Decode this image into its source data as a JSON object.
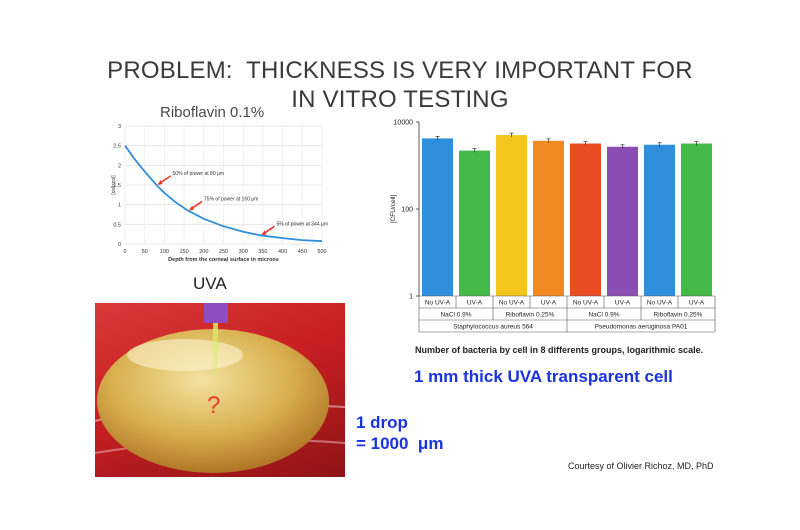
{
  "slide": {
    "title_line1": "PROBLEM:  THICKNESS IS VERY IMPORTANT FOR",
    "title_line2": "IN VITRO TESTING"
  },
  "left_chart": {
    "title": "Riboflavin 0.1%"
  },
  "right_chart": {
    "caption": "Number of bacteria by cell in 8 differents groups, logarithmic scale.",
    "note": "1 mm thick UVA transparent cell"
  },
  "photo": {
    "uva_label": "UVA",
    "question_mark": "?",
    "drop_line1": "1 drop",
    "drop_line2": "= 1000  μm"
  },
  "credit": "Courtesy of Olivier Richoz, MD, PhD",
  "chart_data": [
    {
      "type": "line",
      "title": "Riboflavin 0.1%",
      "xlabel": "Depth from the corneal surface in microns",
      "ylabel": "[cellscol]",
      "xlim": [
        0,
        500
      ],
      "ylim": [
        0,
        3
      ],
      "x_ticks": [
        "0",
        "50",
        "100",
        "150",
        "200",
        "250",
        "300",
        "350",
        "400",
        "450",
        "500"
      ],
      "y_ticks": [
        "0",
        "0.5",
        "1",
        "1.5",
        "2",
        "2.5",
        "3"
      ],
      "grid": true,
      "series": [
        {
          "x": [
            0,
            25,
            50,
            80,
            100,
            130,
            160,
            200,
            250,
            300,
            344,
            400,
            450,
            500
          ],
          "y": [
            2.5,
            2.15,
            1.84,
            1.5,
            1.3,
            1.05,
            0.85,
            0.64,
            0.45,
            0.31,
            0.22,
            0.15,
            0.1,
            0.07
          ],
          "color": "#2f8fdd"
        }
      ],
      "annotations": [
        {
          "text": "50% of power at 80 μm",
          "x": 80,
          "y": 1.5
        },
        {
          "text": "75% of power at 160 μm",
          "x": 160,
          "y": 0.85
        },
        {
          "text": "5% of power at 344 μm",
          "x": 344,
          "y": 0.22
        }
      ],
      "annotation_color": "#e23b26"
    },
    {
      "type": "bar",
      "scale": "log",
      "ylabel": "[CFU/cell]",
      "ylim": [
        1,
        10000
      ],
      "y_ticks": [
        "1",
        "100",
        "10000"
      ],
      "categories": [
        "No UV-A",
        "UV-A",
        "No UV-A",
        "UV-A",
        "No UV-A",
        "UV-A",
        "No UV-A",
        "UV-A"
      ],
      "values": [
        4200,
        2200,
        5000,
        3700,
        3200,
        2700,
        3000,
        3200
      ],
      "colors": [
        "#2f8fdd",
        "#45b84a",
        "#f4c51d",
        "#f08a20",
        "#ea4c24",
        "#8a4db3",
        "#2f8fdd",
        "#45b84a"
      ],
      "group_labels": [
        "NaCl 0.9%",
        "Riboflavin 0.25%",
        "NaCl 0.9%",
        "Riboflavin 0.25%"
      ],
      "organism_labels": [
        "Staphylococcus aureus 564",
        "Pseudomonas aeruginosa PA01"
      ]
    }
  ]
}
